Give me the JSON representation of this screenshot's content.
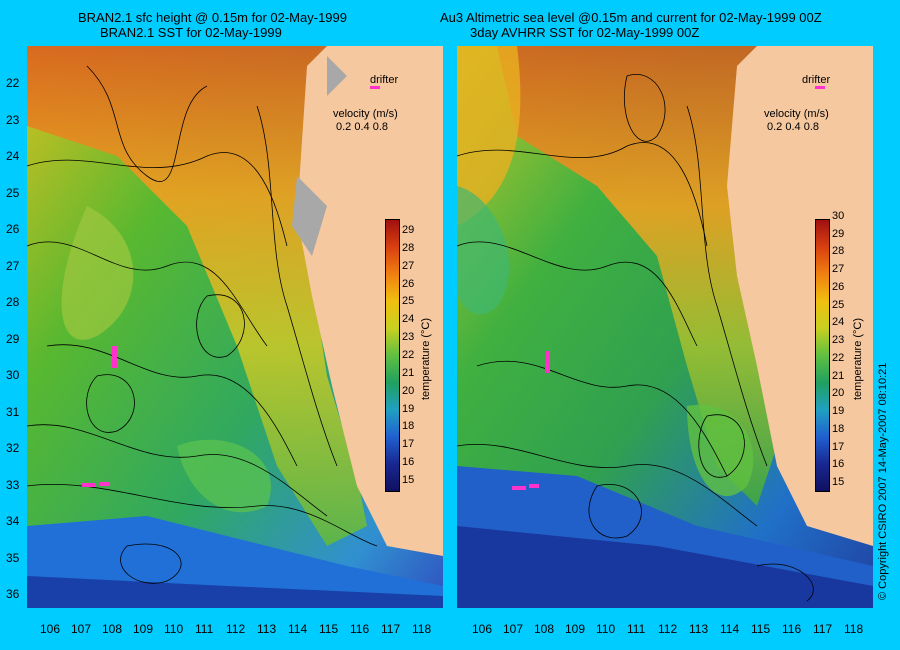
{
  "left_panel": {
    "title_line1": "BRAN2.1 sfc height @ 0.15m for 02-May-1999",
    "title_line2": "BRAN2.1 SST for 02-May-1999",
    "drifter_label": "drifter",
    "velocity_label": "velocity (m/s)",
    "velocity_scale": "0.2  0.4  0.8",
    "colorbar_ticks": [
      "29",
      "28",
      "27",
      "26",
      "25",
      "24",
      "23",
      "22",
      "21",
      "20",
      "19",
      "18",
      "17",
      "16",
      "15"
    ],
    "colorbar_title": "temperature (°C)"
  },
  "right_panel": {
    "title_line1": "Au3 Altimetric sea level  @0.15m and current for 02-May-1999 00Z",
    "title_line2": "3day AVHRR SST for 02-May-1999 00Z",
    "drifter_label": "drifter",
    "velocity_label": "velocity (m/s)",
    "velocity_scale": "0.2  0.4  0.8",
    "colorbar_ticks": [
      "30",
      "29",
      "28",
      "27",
      "26",
      "25",
      "24",
      "23",
      "22",
      "21",
      "20",
      "19",
      "18",
      "17",
      "16",
      "15"
    ],
    "colorbar_title": "temperature (°C)"
  },
  "lat_ticks": [
    "22",
    "23",
    "24",
    "25",
    "26",
    "27",
    "28",
    "29",
    "30",
    "31",
    "32",
    "33",
    "34",
    "35",
    "36"
  ],
  "lon_ticks_left": [
    "106",
    "107",
    "108",
    "109",
    "110",
    "111",
    "112",
    "113",
    "114",
    "115",
    "116",
    "117",
    "118"
  ],
  "lon_ticks_right": [
    "106",
    "107",
    "108",
    "109",
    "110",
    "111",
    "112",
    "113",
    "114",
    "115",
    "116",
    "117",
    "118"
  ],
  "copyright": "© Copyright CSIRO 2007  14-May-2007 08:10:21",
  "colors": {
    "background": "#00ccff",
    "land": "#f6c8a0",
    "drifter": "#ff33cc"
  }
}
